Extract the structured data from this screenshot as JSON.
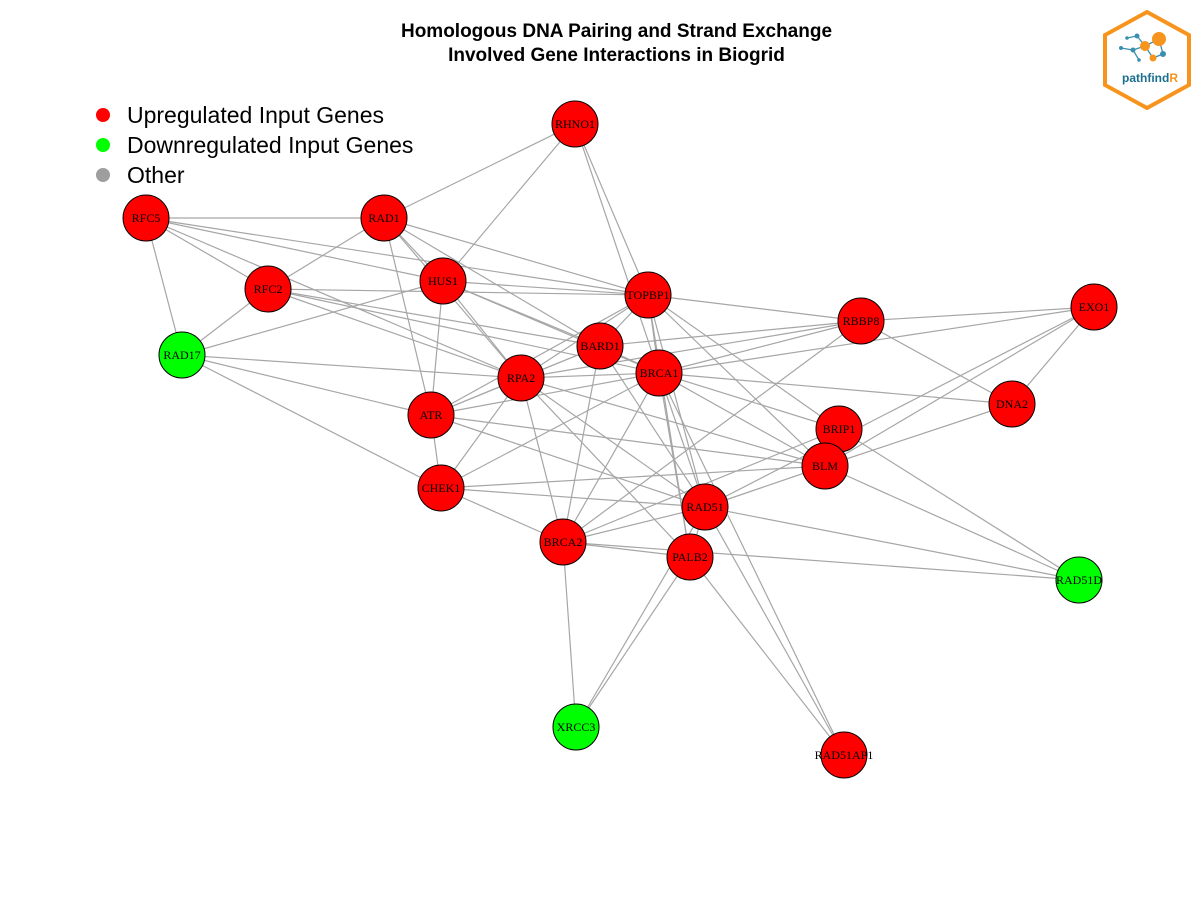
{
  "title": {
    "line1": "Homologous DNA Pairing and Strand Exchange",
    "line2": "Involved Gene Interactions in Biogrid"
  },
  "legend": [
    {
      "label": "Upregulated Input Genes",
      "color": "#ff0000"
    },
    {
      "label": "Downregulated Input Genes",
      "color": "#00ff00"
    },
    {
      "label": "Other",
      "color": "#9e9e9e"
    }
  ],
  "colors": {
    "up": "#ff0000",
    "down": "#00ff00",
    "edge": "#a6a6a6"
  },
  "logo": {
    "text_main": "pathfind",
    "text_accent": "R",
    "border_color": "#f7941d",
    "text_color": "#1b6f8f"
  },
  "nodes": [
    {
      "id": "RHNO1",
      "status": "up"
    },
    {
      "id": "RFC5",
      "status": "up"
    },
    {
      "id": "RAD1",
      "status": "up"
    },
    {
      "id": "HUS1",
      "status": "up"
    },
    {
      "id": "RFC2",
      "status": "up"
    },
    {
      "id": "TOPBP1",
      "status": "up"
    },
    {
      "id": "RBBP8",
      "status": "up"
    },
    {
      "id": "EXO1",
      "status": "up"
    },
    {
      "id": "RAD17",
      "status": "down"
    },
    {
      "id": "BARD1",
      "status": "up"
    },
    {
      "id": "BRCA1",
      "status": "up"
    },
    {
      "id": "RPA2",
      "status": "up"
    },
    {
      "id": "DNA2",
      "status": "up"
    },
    {
      "id": "ATR",
      "status": "up"
    },
    {
      "id": "BRIP1",
      "status": "up"
    },
    {
      "id": "BLM",
      "status": "up"
    },
    {
      "id": "CHEK1",
      "status": "up"
    },
    {
      "id": "RAD51",
      "status": "up"
    },
    {
      "id": "BRCA2",
      "status": "up"
    },
    {
      "id": "PALB2",
      "status": "up"
    },
    {
      "id": "RAD51D",
      "status": "down"
    },
    {
      "id": "XRCC3",
      "status": "down"
    },
    {
      "id": "RAD51AP1",
      "status": "up"
    }
  ],
  "edges": [
    [
      "RHNO1",
      "RAD1"
    ],
    [
      "RHNO1",
      "HUS1"
    ],
    [
      "RHNO1",
      "TOPBP1"
    ],
    [
      "RHNO1",
      "BRCA1"
    ],
    [
      "RFC5",
      "RAD1"
    ],
    [
      "RFC5",
      "RFC2"
    ],
    [
      "RFC5",
      "RAD17"
    ],
    [
      "RFC5",
      "HUS1"
    ],
    [
      "RFC5",
      "TOPBP1"
    ],
    [
      "RFC5",
      "RPA2"
    ],
    [
      "RAD1",
      "RFC2"
    ],
    [
      "RAD1",
      "HUS1"
    ],
    [
      "RAD1",
      "TOPBP1"
    ],
    [
      "RAD1",
      "ATR"
    ],
    [
      "RAD1",
      "RPA2"
    ],
    [
      "RAD1",
      "BARD1"
    ],
    [
      "HUS1",
      "TOPBP1"
    ],
    [
      "HUS1",
      "RAD17"
    ],
    [
      "HUS1",
      "RPA2"
    ],
    [
      "HUS1",
      "ATR"
    ],
    [
      "HUS1",
      "BRCA1"
    ],
    [
      "HUS1",
      "BARD1"
    ],
    [
      "RFC2",
      "RAD17"
    ],
    [
      "RFC2",
      "TOPBP1"
    ],
    [
      "RFC2",
      "RPA2"
    ],
    [
      "RFC2",
      "BRCA1"
    ],
    [
      "RFC2",
      "BARD1"
    ],
    [
      "TOPBP1",
      "BARD1"
    ],
    [
      "TOPBP1",
      "BRCA1"
    ],
    [
      "TOPBP1",
      "RBBP8"
    ],
    [
      "TOPBP1",
      "RPA2"
    ],
    [
      "TOPBP1",
      "ATR"
    ],
    [
      "TOPBP1",
      "BRIP1"
    ],
    [
      "TOPBP1",
      "BLM"
    ],
    [
      "TOPBP1",
      "RAD51"
    ],
    [
      "TOPBP1",
      "PALB2"
    ],
    [
      "RBBP8",
      "BRCA1"
    ],
    [
      "RBBP8",
      "BARD1"
    ],
    [
      "RBBP8",
      "EXO1"
    ],
    [
      "RBBP8",
      "DNA2"
    ],
    [
      "RBBP8",
      "RPA2"
    ],
    [
      "RBBP8",
      "BRCA2"
    ],
    [
      "EXO1",
      "BRCA1"
    ],
    [
      "EXO1",
      "DNA2"
    ],
    [
      "EXO1",
      "BLM"
    ],
    [
      "EXO1",
      "RAD51"
    ],
    [
      "RAD17",
      "RPA2"
    ],
    [
      "RAD17",
      "ATR"
    ],
    [
      "RAD17",
      "CHEK1"
    ],
    [
      "BARD1",
      "BRCA1"
    ],
    [
      "BARD1",
      "RPA2"
    ],
    [
      "BARD1",
      "ATR"
    ],
    [
      "BARD1",
      "BRCA2"
    ],
    [
      "BARD1",
      "RAD51"
    ],
    [
      "BRCA1",
      "RPA2"
    ],
    [
      "BRCA1",
      "ATR"
    ],
    [
      "BRCA1",
      "DNA2"
    ],
    [
      "BRCA1",
      "BRIP1"
    ],
    [
      "BRCA1",
      "BLM"
    ],
    [
      "BRCA1",
      "RAD51"
    ],
    [
      "BRCA1",
      "PALB2"
    ],
    [
      "BRCA1",
      "BRCA2"
    ],
    [
      "BRCA1",
      "CHEK1"
    ],
    [
      "RPA2",
      "ATR"
    ],
    [
      "RPA2",
      "CHEK1"
    ],
    [
      "RPA2",
      "BRCA2"
    ],
    [
      "RPA2",
      "RAD51"
    ],
    [
      "RPA2",
      "PALB2"
    ],
    [
      "RPA2",
      "BLM"
    ],
    [
      "ATR",
      "CHEK1"
    ],
    [
      "ATR",
      "BLM"
    ],
    [
      "ATR",
      "RAD51"
    ],
    [
      "BRIP1",
      "RAD51D"
    ],
    [
      "BRIP1",
      "BRCA2"
    ],
    [
      "BRIP1",
      "BLM"
    ],
    [
      "BLM",
      "CHEK1"
    ],
    [
      "BLM",
      "RAD51"
    ],
    [
      "BLM",
      "RAD51D"
    ],
    [
      "BLM",
      "DNA2"
    ],
    [
      "CHEK1",
      "RAD51"
    ],
    [
      "CHEK1",
      "BRCA2"
    ],
    [
      "RAD51",
      "BRCA2"
    ],
    [
      "RAD51",
      "PALB2"
    ],
    [
      "RAD51",
      "RAD51D"
    ],
    [
      "RAD51",
      "XRCC3"
    ],
    [
      "RAD51",
      "RAD51AP1"
    ],
    [
      "BRCA2",
      "PALB2"
    ],
    [
      "BRCA2",
      "XRCC3"
    ],
    [
      "BRCA2",
      "RAD51D"
    ],
    [
      "PALB2",
      "XRCC3"
    ],
    [
      "PALB2",
      "RAD51AP1"
    ],
    [
      "BRCA1",
      "RAD51AP1"
    ]
  ]
}
